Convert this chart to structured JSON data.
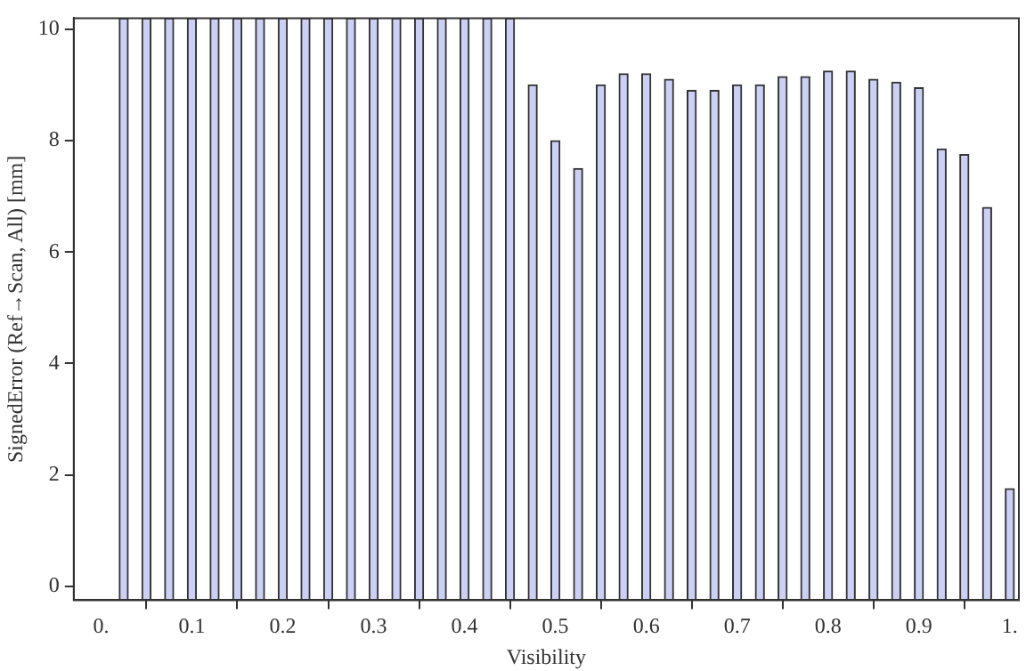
{
  "chart_data": {
    "type": "bar",
    "xlabel": "Visibility",
    "ylabel": "SignedError (Ref→Scan, All) [mm]",
    "x": [
      0.025,
      0.05,
      0.075,
      0.1,
      0.125,
      0.15,
      0.175,
      0.2,
      0.225,
      0.25,
      0.275,
      0.3,
      0.325,
      0.35,
      0.375,
      0.4,
      0.425,
      0.45,
      0.475,
      0.5,
      0.525,
      0.55,
      0.575,
      0.6,
      0.625,
      0.65,
      0.675,
      0.7,
      0.725,
      0.75,
      0.775,
      0.8,
      0.825,
      0.85,
      0.875,
      0.9,
      0.925,
      0.95,
      0.975,
      1.0
    ],
    "base": [
      -0.25,
      -0.25,
      -0.25,
      -0.25,
      -0.25,
      -0.25,
      -0.25,
      -0.25,
      -0.25,
      -0.25,
      -0.25,
      -0.25,
      -0.25,
      -0.25,
      -0.25,
      -0.25,
      -0.25,
      -0.25,
      -0.25,
      -0.25,
      -0.25,
      -0.25,
      -0.25,
      -0.25,
      -0.25,
      -0.25,
      -0.25,
      -0.25,
      -0.25,
      -0.25,
      -0.25,
      -0.25,
      -0.25,
      -0.25,
      -0.25,
      -0.25,
      -0.25,
      -0.25,
      -0.25,
      -0.25
    ],
    "values": [
      10.45,
      10.45,
      10.45,
      10.45,
      10.45,
      10.45,
      10.45,
      10.45,
      10.45,
      10.45,
      10.45,
      10.45,
      10.45,
      10.45,
      10.45,
      10.45,
      10.45,
      10.45,
      9.25,
      8.25,
      7.75,
      9.25,
      9.45,
      9.45,
      9.35,
      9.15,
      9.15,
      9.25,
      9.25,
      9.4,
      9.4,
      9.5,
      9.5,
      9.35,
      9.3,
      9.2,
      8.1,
      8.0,
      7.05,
      2.0
    ],
    "color": "#ccd0f5",
    "xlim": [
      -0.03,
      1.01
    ],
    "ylim": [
      -0.25,
      10.2
    ],
    "xticks": [
      {
        "value": 0,
        "label": "0."
      },
      0.1,
      0.2,
      0.3,
      0.4,
      0.5,
      0.6,
      0.7,
      0.8,
      0.9,
      {
        "value": 1,
        "label": "1."
      }
    ],
    "yticks": [
      0,
      2,
      4,
      6,
      8,
      10
    ],
    "grid": false,
    "legend": false
  }
}
